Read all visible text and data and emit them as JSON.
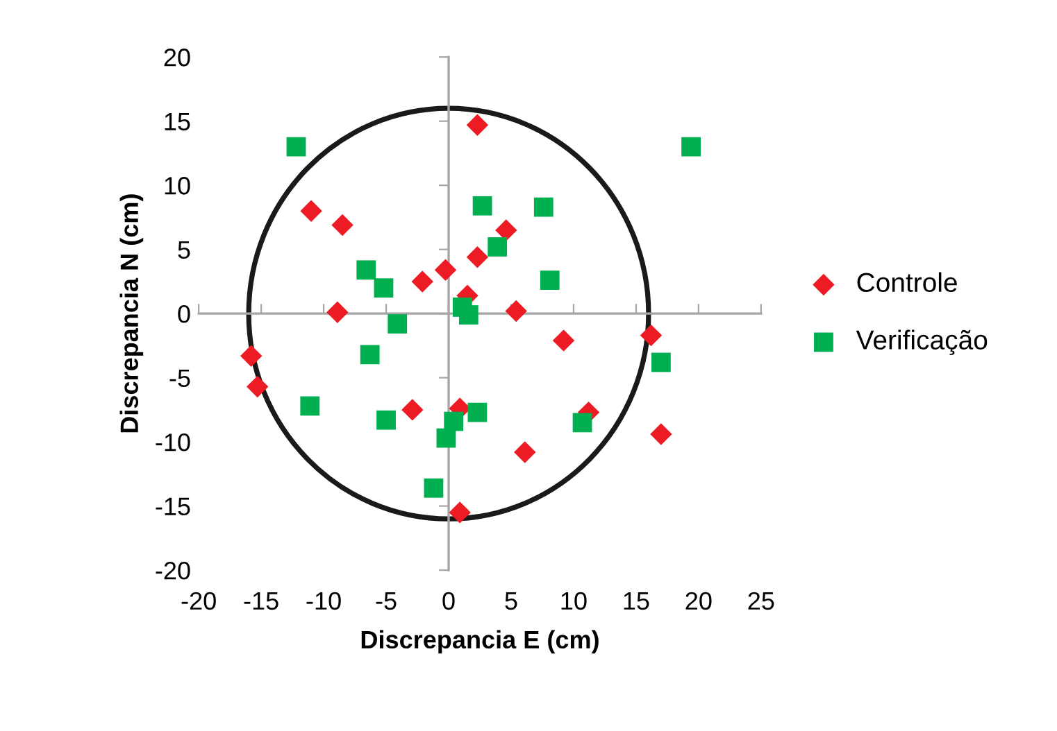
{
  "chart_data": {
    "type": "scatter",
    "xlabel": "Discrepancia E (cm)",
    "ylabel": "Discrepancia N (cm)",
    "xlim": [
      -20,
      25
    ],
    "xticks": [
      -20,
      -15,
      -10,
      -5,
      0,
      5,
      10,
      15,
      20,
      25
    ],
    "ylim": [
      -20,
      20
    ],
    "yticks": [
      -20,
      -15,
      -10,
      -5,
      0,
      5,
      10,
      15,
      20
    ],
    "legend": "right",
    "series": [
      {
        "name": "Controle",
        "color": "#ed1c24",
        "marker": "diamond",
        "x": [
          2.3,
          -11.0,
          -8.5,
          -0.25,
          -2.1,
          -8.9,
          4.6,
          2.3,
          1.5,
          5.4,
          9.2,
          16.2,
          -15.8,
          -15.3,
          -2.9,
          0.9,
          11.2,
          17.0,
          6.1,
          0.9
        ],
        "values": [
          14.7,
          8.0,
          6.9,
          3.4,
          2.5,
          0.1,
          6.5,
          4.4,
          1.4,
          0.2,
          -2.1,
          -1.7,
          -3.3,
          -5.7,
          -7.5,
          -7.4,
          -7.7,
          -9.4,
          -10.8,
          -15.5
        ]
      },
      {
        "name": "Verificação",
        "color": "#00b050",
        "marker": "square",
        "x": [
          -12.2,
          19.4,
          2.7,
          7.6,
          3.9,
          8.1,
          -6.6,
          -5.2,
          -4.1,
          1.1,
          1.6,
          -6.3,
          17.0,
          -11.1,
          -5.0,
          2.3,
          0.4,
          -0.2,
          10.7,
          -1.2
        ],
        "values": [
          13.0,
          13.0,
          8.4,
          8.3,
          5.2,
          2.6,
          3.4,
          2.0,
          -0.8,
          0.5,
          -0.1,
          -3.2,
          -3.8,
          -7.2,
          -8.3,
          -7.7,
          -8.4,
          -9.7,
          -8.5,
          -13.6
        ]
      }
    ]
  }
}
